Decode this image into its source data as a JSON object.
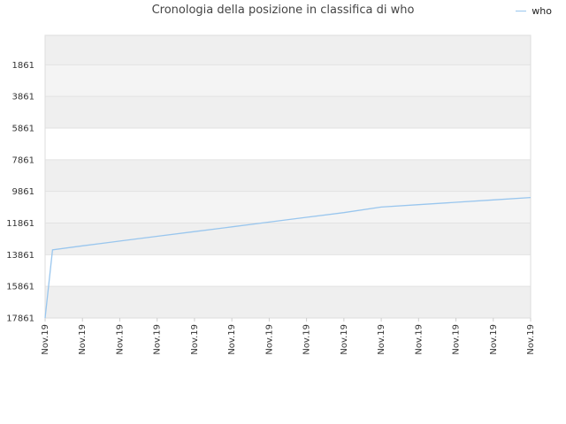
{
  "chart_data": {
    "type": "line",
    "title": "Cronologia della posizione in classifica di who",
    "xlabel": "",
    "ylabel": "",
    "y_inverted": true,
    "ylim": [
      17861,
      0
    ],
    "y_ticks": [
      "1861",
      "3861",
      "5861",
      "7861",
      "9861",
      "11861",
      "13861",
      "15861",
      "17861"
    ],
    "x_ticks": [
      "Nov.19",
      "Nov.19",
      "Nov.19",
      "Nov.19",
      "Nov.19",
      "Nov.19",
      "Nov.19",
      "Nov.19",
      "Nov.19",
      "Nov.19",
      "Nov.19",
      "Nov.19",
      "Nov.19",
      "Nov.19"
    ],
    "legend_position": "top-right",
    "grid": true,
    "series": [
      {
        "name": "who",
        "color": "#99c6ee",
        "x": [
          0,
          0.2,
          1,
          2,
          3,
          4,
          5,
          6,
          7,
          8,
          9,
          10,
          11,
          12,
          13
        ],
        "values": [
          17861,
          13550,
          13300,
          13000,
          12700,
          12400,
          12100,
          11800,
          11500,
          11200,
          10850,
          10700,
          10550,
          10400,
          10250
        ]
      }
    ]
  }
}
